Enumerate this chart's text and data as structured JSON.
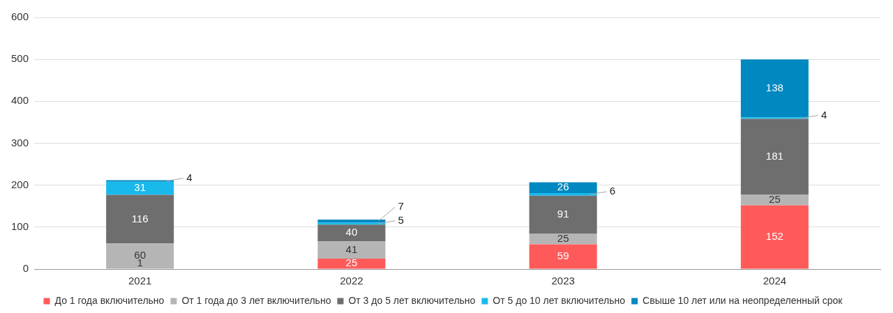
{
  "chart_data": {
    "type": "bar",
    "stacked": true,
    "categories": [
      "2021",
      "2022",
      "2023",
      "2024"
    ],
    "series": [
      {
        "name": "До 1 года включительно",
        "color": "#ff5a5a",
        "values": [
          1,
          25,
          59,
          152
        ]
      },
      {
        "name": "От 1 года до 3 лет включительно",
        "color": "#b5b5b5",
        "values": [
          60,
          41,
          25,
          25
        ]
      },
      {
        "name": "От 3 до 5 лет включительно",
        "color": "#6e6e6e",
        "values": [
          116,
          40,
          91,
          181
        ]
      },
      {
        "name": "От 5 до 10 лет включительно",
        "color": "#1ab9ec",
        "values": [
          31,
          5,
          6,
          4
        ]
      },
      {
        "name": "Свыше 10 лет или на неопределенный срок",
        "color": "#0088c0",
        "values": [
          4,
          7,
          26,
          138
        ]
      }
    ],
    "ylim": [
      0,
      600
    ],
    "yticks": [
      0,
      100,
      200,
      300,
      400,
      500,
      600
    ],
    "grid": "y",
    "legend": "bottom",
    "data_labels": true
  }
}
